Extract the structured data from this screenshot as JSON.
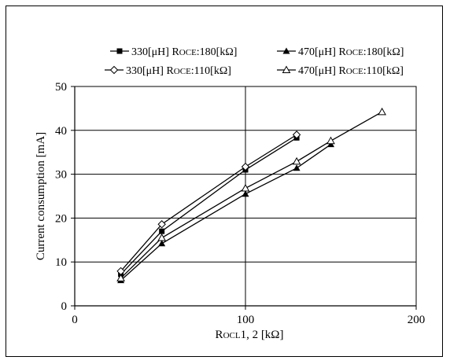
{
  "chart_data": {
    "type": "line",
    "xlabel": {
      "prefix": "R",
      "smallcaps": "OCL",
      "rest": "1, 2 [kΩ]"
    },
    "ylabel": "Current consumption [mA]",
    "xlim": [
      0,
      200
    ],
    "ylim": [
      0,
      50
    ],
    "xticks": [
      0,
      100,
      200
    ],
    "yticks": [
      0,
      10,
      20,
      30,
      40,
      50
    ],
    "grid": {
      "x": [
        100
      ],
      "y": [
        10,
        20,
        30,
        40,
        50
      ]
    },
    "legend_placement": "top",
    "series": [
      {
        "legend": {
          "inductance": "330[μH]",
          "r": "R",
          "smallcaps": "OCE",
          "value": ":180[kΩ]"
        },
        "marker": "square-filled",
        "x": [
          27,
          51,
          100,
          130
        ],
        "y": [
          7.2,
          17.0,
          31.0,
          38.3
        ]
      },
      {
        "legend": {
          "inductance": "470[μH]",
          "r": "R",
          "smallcaps": "OCE",
          "value": ":180[kΩ]"
        },
        "marker": "triangle-filled",
        "x": [
          27,
          51,
          100,
          130,
          150
        ],
        "y": [
          5.8,
          14.2,
          25.5,
          31.4,
          36.8
        ]
      },
      {
        "legend": {
          "inductance": "330[μH]",
          "r": "R",
          "smallcaps": "OCE",
          "value": ":110[kΩ]"
        },
        "marker": "diamond-open",
        "x": [
          27,
          51,
          100,
          130
        ],
        "y": [
          7.9,
          18.6,
          31.7,
          39.0
        ]
      },
      {
        "legend": {
          "inductance": "470[μH]",
          "r": "R",
          "smallcaps": "OCE",
          "value": ":110[kΩ]"
        },
        "marker": "triangle-open",
        "x": [
          27,
          51,
          100,
          130,
          150,
          180
        ],
        "y": [
          6.3,
          15.5,
          26.8,
          32.9,
          37.6,
          44.2
        ]
      }
    ]
  }
}
